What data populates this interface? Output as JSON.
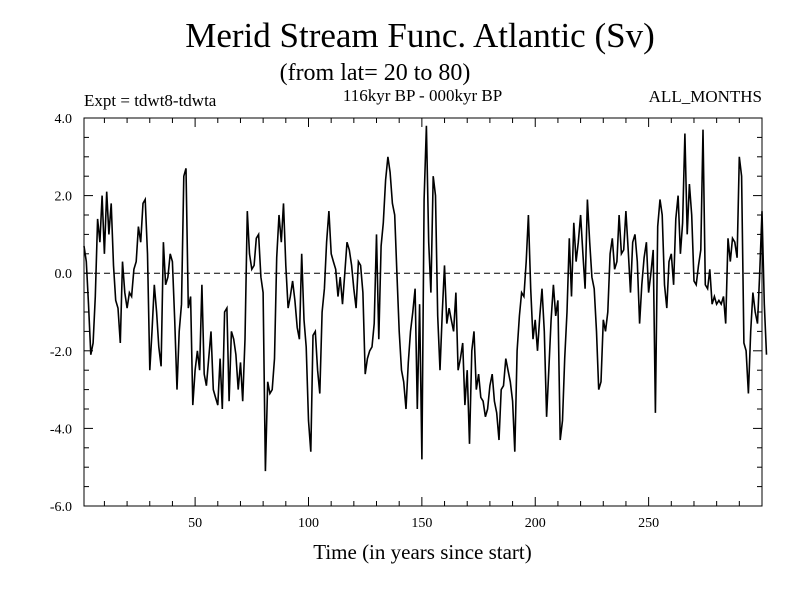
{
  "header": {
    "title": "Merid Stream Func. Atlantic (Sv)",
    "subtitle": "(from lat= 20 to 80)",
    "expt": "Expt = tdwt8-tdwta",
    "period": "116kyr BP - 000kyr BP",
    "months": "ALL_MONTHS"
  },
  "chart_data": {
    "type": "line",
    "title": "Merid Stream Func. Atlantic (Sv)",
    "subtitle": "(from lat= 20 to 80)",
    "xlabel": "Time (in years since start)",
    "ylabel": "",
    "xlim": [
      1,
      300
    ],
    "ylim": [
      -6.0,
      4.0
    ],
    "xticks": [
      50,
      100,
      150,
      200,
      250
    ],
    "xtick_labels": [
      "50",
      "100",
      "150",
      "200",
      "250"
    ],
    "yticks": [
      -6.0,
      -4.0,
      -2.0,
      0.0,
      2.0,
      4.0
    ],
    "ytick_labels": [
      "-6.0",
      "-4.0",
      "-2.0",
      "0.0",
      "2.0",
      "4.0"
    ],
    "reference_line": {
      "y": 0.0,
      "style": "dashed"
    },
    "grid": false,
    "series": [
      {
        "name": "Merid Stream Func. Atlantic",
        "x_start": 1,
        "x_step": 1,
        "values": [
          0.7,
          0.3,
          -0.8,
          -2.1,
          -1.8,
          -0.6,
          1.4,
          0.8,
          2.0,
          0.5,
          2.1,
          1.0,
          1.8,
          0.2,
          -0.7,
          -0.9,
          -1.8,
          0.3,
          -0.5,
          -0.9,
          -0.5,
          -0.6,
          0.1,
          0.3,
          1.2,
          0.8,
          1.8,
          1.9,
          0.5,
          -2.5,
          -1.5,
          -0.3,
          -1.0,
          -1.9,
          -2.4,
          0.8,
          -0.3,
          -0.1,
          0.5,
          0.3,
          -1.2,
          -3.0,
          -1.5,
          -0.8,
          2.5,
          2.7,
          -0.9,
          -0.6,
          -3.4,
          -2.5,
          -2.0,
          -2.5,
          -0.3,
          -2.6,
          -2.9,
          -2.2,
          -1.5,
          -3.0,
          -3.2,
          -3.4,
          -2.2,
          -3.5,
          -1.0,
          -0.9,
          -3.3,
          -1.5,
          -1.7,
          -2.1,
          -3.0,
          -2.3,
          -3.3,
          -1.7,
          1.6,
          0.5,
          0.1,
          0.2,
          0.9,
          1.0,
          -0.1,
          -0.5,
          -5.1,
          -2.8,
          -3.1,
          -3.0,
          -2.2,
          0.4,
          1.5,
          0.8,
          1.8,
          0.2,
          -0.9,
          -0.6,
          -0.2,
          -0.7,
          -1.4,
          -1.7,
          0.5,
          -1.2,
          -1.9,
          -3.8,
          -4.6,
          -1.6,
          -1.5,
          -2.5,
          -3.1,
          -1.0,
          -0.4,
          0.8,
          1.6,
          0.5,
          0.3,
          0.1,
          -0.6,
          -0.1,
          -0.8,
          0.0,
          0.8,
          0.6,
          0.2,
          -0.4,
          -0.9,
          0.3,
          0.2,
          -0.5,
          -2.6,
          -2.2,
          -2.0,
          -1.9,
          -1.3,
          1.0,
          -1.7,
          0.7,
          1.3,
          2.4,
          3.0,
          2.6,
          1.8,
          1.5,
          0.0,
          -1.5,
          -2.5,
          -2.8,
          -3.5,
          -2.3,
          -1.5,
          -1.0,
          -0.4,
          -3.5,
          -0.8,
          -4.8,
          1.9,
          3.8,
          0.8,
          -0.5,
          2.5,
          2.0,
          -1.1,
          -2.5,
          -1.0,
          0.2,
          -1.3,
          -0.9,
          -1.2,
          -1.5,
          -0.5,
          -2.5,
          -2.2,
          -1.8,
          -3.4,
          -2.5,
          -4.4,
          -2.0,
          -1.5,
          -3.0,
          -2.6,
          -3.2,
          -3.3,
          -3.7,
          -3.5,
          -2.9,
          -2.6,
          -3.3,
          -3.6,
          -4.3,
          -3.0,
          -2.9,
          -2.2,
          -2.5,
          -2.8,
          -3.3,
          -4.6,
          -2.0,
          -1.1,
          -0.5,
          -0.6,
          0.3,
          1.5,
          -0.4,
          -1.7,
          -1.2,
          -2.0,
          -1.1,
          -0.4,
          -1.5,
          -3.7,
          -2.5,
          -1.2,
          -0.3,
          -1.1,
          -0.7,
          -4.3,
          -3.8,
          -2.2,
          -1.0,
          0.9,
          -0.6,
          1.3,
          0.3,
          0.8,
          1.5,
          0.5,
          -0.4,
          1.9,
          0.8,
          -0.1,
          -0.4,
          -1.5,
          -3.0,
          -2.8,
          -1.2,
          -1.5,
          -1.0,
          0.5,
          0.9,
          0.1,
          0.3,
          1.5,
          0.5,
          0.6,
          1.6,
          0.6,
          -0.5,
          0.8,
          1.0,
          0.3,
          -1.3,
          -0.3,
          0.4,
          0.8,
          -0.5,
          0.0,
          0.6,
          -3.6,
          1.2,
          1.9,
          1.5,
          -0.3,
          -0.9,
          0.3,
          0.5,
          -0.3,
          1.4,
          2.0,
          0.5,
          1.3,
          3.6,
          1.0,
          2.3,
          1.5,
          -0.2,
          -0.3,
          0.2,
          0.6,
          3.7,
          -0.3,
          -0.4,
          0.1,
          -0.8,
          -0.6,
          -0.8,
          -0.7,
          -0.8,
          -0.6,
          -1.3,
          0.9,
          0.3,
          0.9,
          0.8,
          0.4,
          3.0,
          2.5,
          -1.8,
          -2.0,
          -3.1,
          -1.5,
          -0.5,
          -1.0,
          -1.3,
          0.0,
          1.6,
          -0.8,
          -2.1
        ]
      }
    ]
  }
}
